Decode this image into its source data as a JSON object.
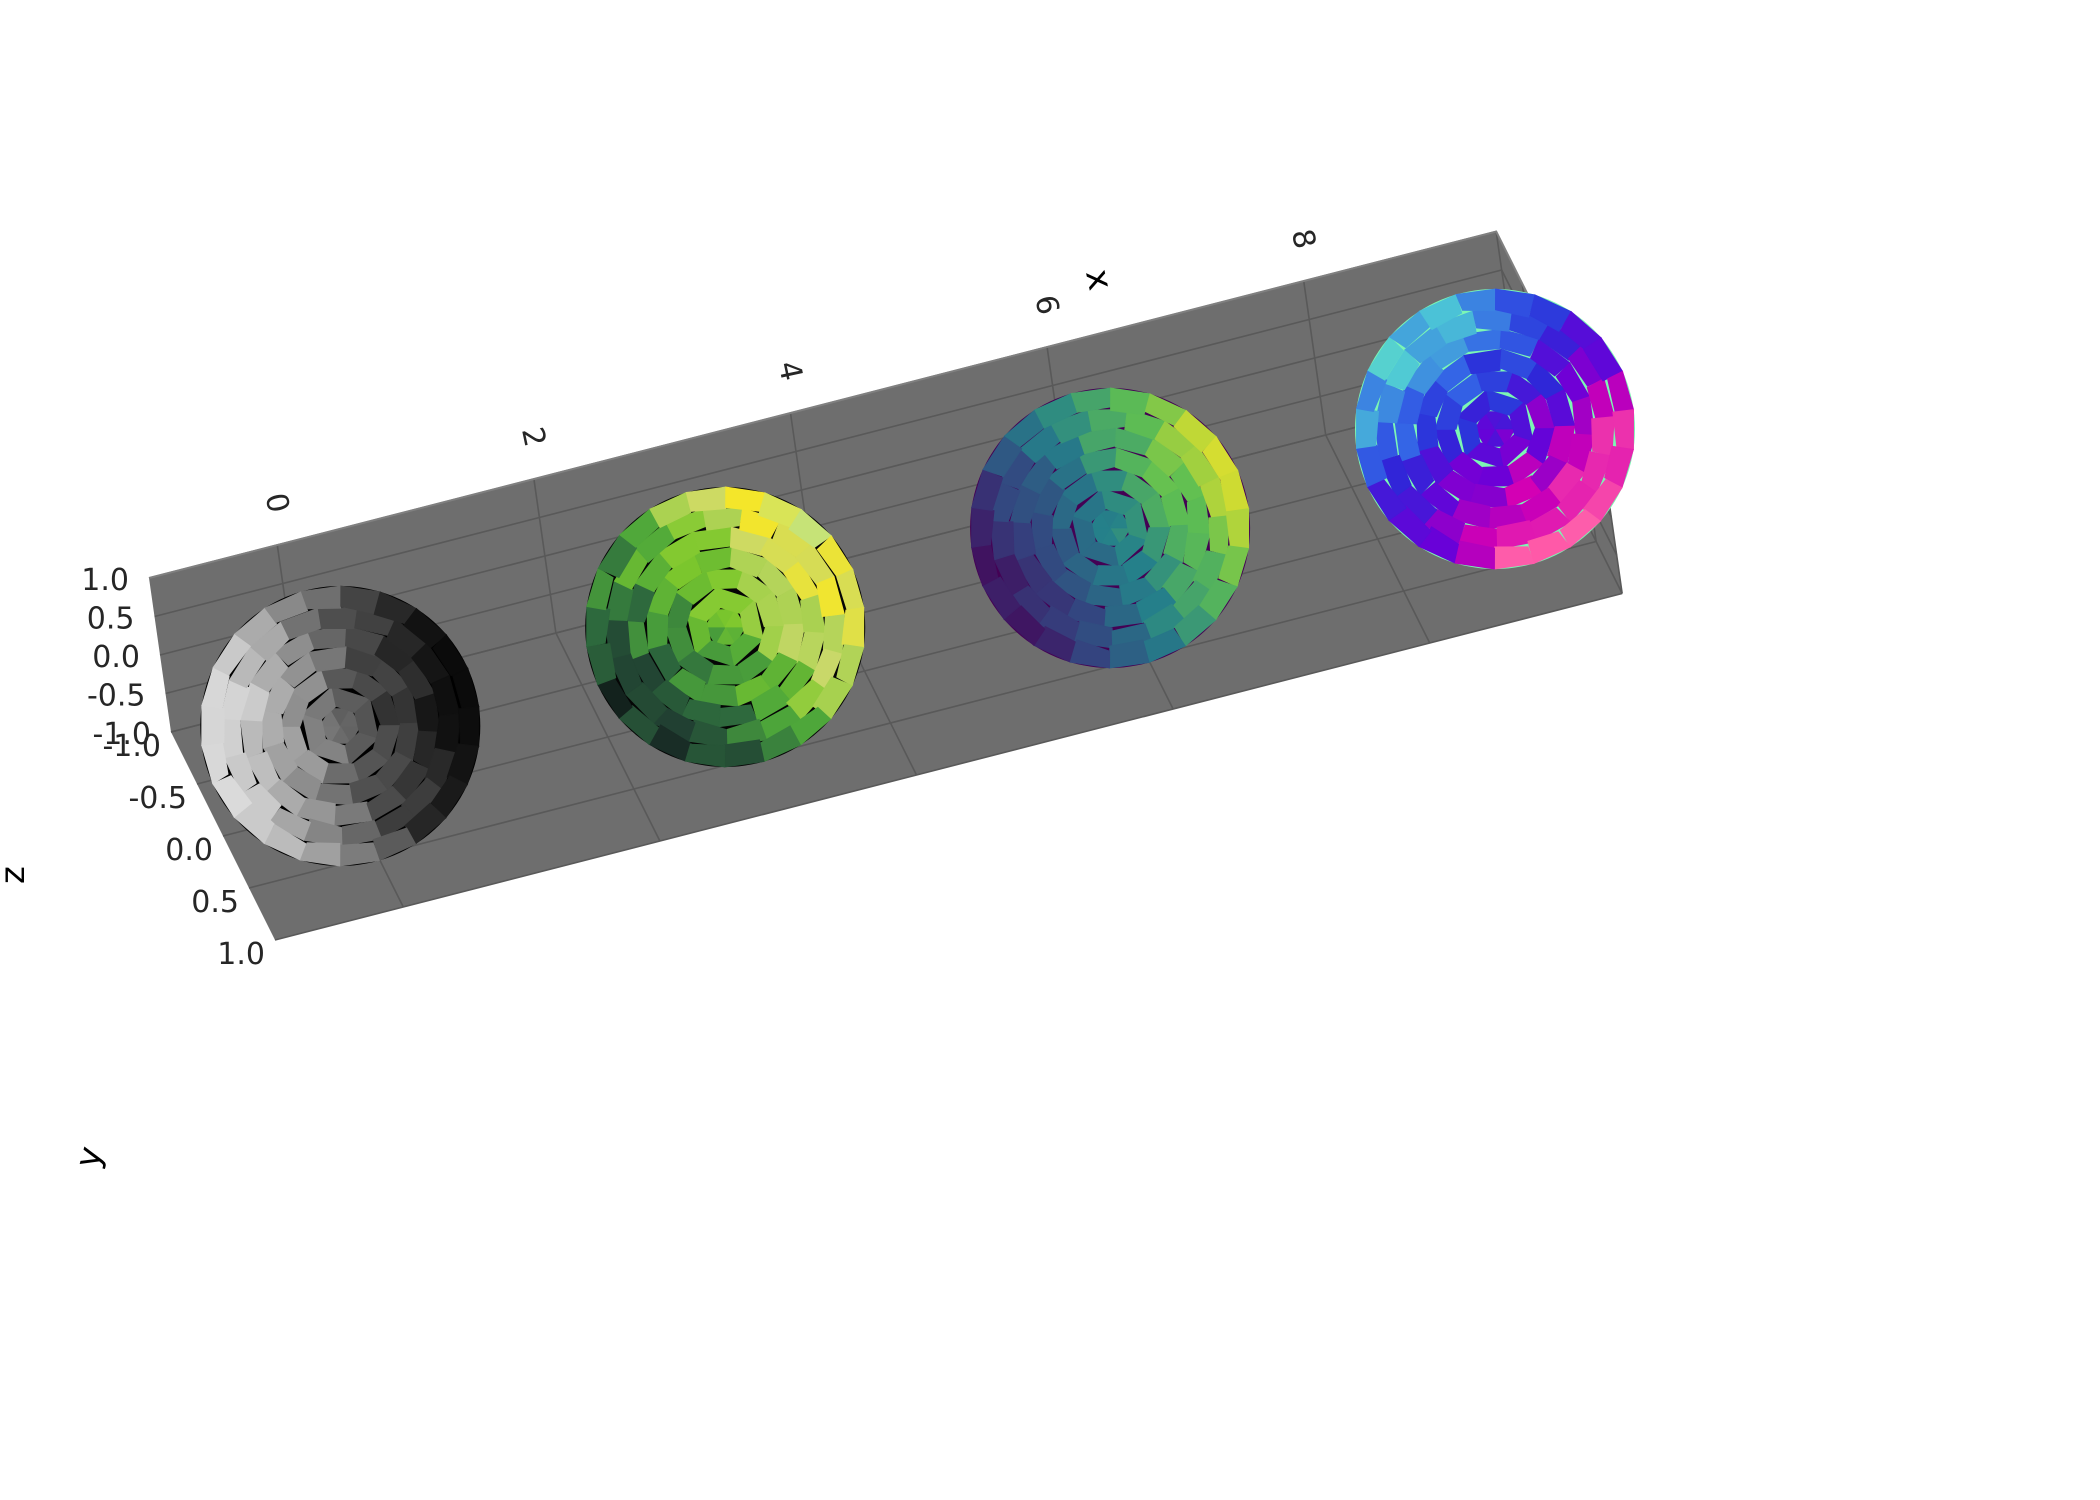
{
  "chart_data": {
    "type": "surface3d",
    "title": "",
    "axes": {
      "x": {
        "label": "x",
        "ticks": [
          "0",
          "2",
          "4",
          "6",
          "8"
        ],
        "range": [
          -1,
          9.5
        ]
      },
      "y": {
        "label": "y",
        "ticks": [
          "-1.0",
          "-0.5",
          "0.0",
          "0.5",
          "1.0"
        ],
        "range": [
          -1,
          1
        ]
      },
      "z": {
        "label": "z",
        "ticks": [
          "-1.0",
          "-0.5",
          "0.0",
          "0.5",
          "1.0"
        ],
        "range": [
          -1,
          1
        ]
      }
    },
    "pane_color": "#6e6e6e",
    "grid_color": "#595959",
    "series": [
      {
        "center": [
          0,
          0,
          0
        ],
        "radius": 1,
        "colors": [
          "#000000",
          "#1a1a1a",
          "#4d4d4d",
          "#8c8c8c",
          "#cccccc",
          "#f2f2f2"
        ]
      },
      {
        "center": [
          3,
          0,
          0
        ],
        "radius": 1,
        "colors": [
          "#050505",
          "#1f3a30",
          "#2f6e3e",
          "#4fa83a",
          "#7ec82c",
          "#c8d86a",
          "#f4e62a",
          "#8de0d6"
        ]
      },
      {
        "center": [
          6,
          0,
          0
        ],
        "radius": 1,
        "colors": [
          "#440154",
          "#34427f",
          "#25818a",
          "#5fbf52",
          "#fde725"
        ]
      },
      {
        "center": [
          9,
          0,
          0
        ],
        "radius": 1,
        "colors": [
          "#7cf7b4",
          "#4cc6d6",
          "#3466e6",
          "#2a2ad8",
          "#6a00d8",
          "#d400b4",
          "#ff5aa8",
          "#c8b4ff"
        ]
      }
    ]
  }
}
